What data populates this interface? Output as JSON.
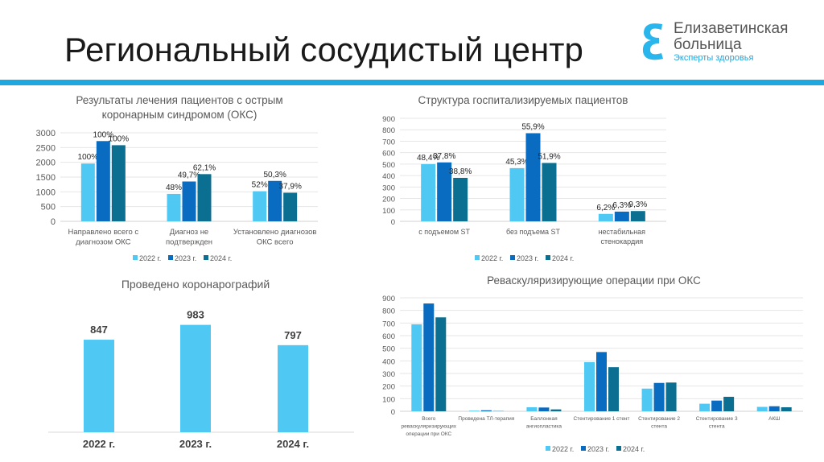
{
  "header": {
    "title": "Региональный сосудистый центр",
    "logo": {
      "line1": "Елизаветинская",
      "line2": "больница",
      "tagline": "Эксперты здоровья"
    },
    "accent": "#1ea7e1"
  },
  "colors": {
    "2022 г.": "#4fc8f4",
    "2023 г.": "#0a6cc0",
    "2024 г.": "#0b6f92"
  },
  "chart_data": [
    {
      "type": "bar",
      "title": "Результаты лечения пациентов с острым коронарным синдромом (ОКС)",
      "title_lines": [
        "Результаты лечения пациентов с острым",
        "коронарным синдромом (ОКС)"
      ],
      "categories": [
        "Направлено всего с диагнозом ОКС",
        "Диагноз не подтвержден",
        "Установлено диагнозов ОКС всего"
      ],
      "category_lines": [
        [
          "Направлено всего с",
          "диагнозом ОКС"
        ],
        [
          "Диагноз не",
          "подтвержден"
        ],
        [
          "Установлено диагнозов",
          "ОКС всего"
        ]
      ],
      "series": [
        {
          "name": "2022 г.",
          "values": [
            1960,
            930,
            1020
          ],
          "labels": [
            "100%",
            "48%",
            "52%"
          ]
        },
        {
          "name": "2023 г.",
          "values": [
            2720,
            1350,
            1370
          ],
          "labels": [
            "100%",
            "49,7%",
            "50,3%"
          ]
        },
        {
          "name": "2024 г.",
          "values": [
            2580,
            1600,
            970
          ],
          "labels": [
            "100%",
            "62,1%",
            "37,9%"
          ]
        }
      ],
      "ylim": [
        0,
        3000
      ],
      "yticks": [
        "0",
        "500",
        "1000",
        "1500",
        "2000",
        "2500",
        "3000"
      ],
      "grid": true,
      "legend": "bottom"
    },
    {
      "type": "bar",
      "title": "Структура госпитализируемых пациентов",
      "title_lines": [
        "Структура госпитализируемых пациентов"
      ],
      "categories": [
        "с подъемом ST",
        "без подъема ST",
        "нестабильная стенокардия"
      ],
      "category_lines": [
        [
          "с подъемом ST"
        ],
        [
          "без подъема ST"
        ],
        [
          "нестабильная",
          "стенокардия"
        ]
      ],
      "series": [
        {
          "name": "2022 г.",
          "values": [
            500,
            465,
            65
          ],
          "labels": [
            "48,4%",
            "45,3%",
            "6,2%"
          ]
        },
        {
          "name": "2023 г.",
          "values": [
            515,
            770,
            85
          ],
          "labels": [
            "37,8%",
            "55,9%",
            "6,3%"
          ]
        },
        {
          "name": "2024 г.",
          "values": [
            380,
            510,
            90
          ],
          "labels": [
            "38,8%",
            "51,9%",
            "9,3%"
          ]
        }
      ],
      "ylim": [
        0,
        900
      ],
      "yticks": [
        "0",
        "100",
        "200",
        "300",
        "400",
        "500",
        "600",
        "700",
        "800",
        "900"
      ],
      "grid": true,
      "legend": "bottom"
    },
    {
      "type": "bar",
      "title": "Проведено коронарографий",
      "title_lines": [
        "Проведено коронарографий"
      ],
      "categories": [
        "2022 г.",
        "2023 г.",
        "2024 г."
      ],
      "values": [
        847,
        983,
        797
      ],
      "labels": [
        "847",
        "983",
        "797"
      ],
      "grid": false,
      "legend": "none"
    },
    {
      "type": "bar",
      "title": "Реваскуляризирующие операции при ОКС",
      "title_lines": [
        "Реваскуляризирующие операции при ОКС"
      ],
      "categories": [
        "Всего реваскуляризирующих операции при ОКС",
        "Проведена ТЛ-терапия",
        "Баллонная ангиопластика",
        "Стентирование 1 стент",
        "Стентирование 2 стента",
        "Стентирование 3 стента",
        "АКШ"
      ],
      "category_lines": [
        [
          "Всего",
          "реваскуляризирующих",
          "операции при ОКС"
        ],
        [
          "Проведена ТЛ-терапия"
        ],
        [
          "Баллонная",
          "ангиопластика"
        ],
        [
          "Стентирование 1 стент"
        ],
        [
          "Стентирование 2",
          "стента"
        ],
        [
          "Стентирование 3",
          "стента"
        ],
        [
          "АКШ"
        ]
      ],
      "series": [
        {
          "name": "2022 г.",
          "values": [
            690,
            5,
            32,
            390,
            180,
            60,
            35
          ]
        },
        {
          "name": "2023 г.",
          "values": [
            855,
            8,
            30,
            470,
            225,
            85,
            40
          ]
        },
        {
          "name": "2024 г.",
          "values": [
            745,
            2,
            15,
            350,
            228,
            115,
            32
          ]
        }
      ],
      "ylim": [
        0,
        900
      ],
      "yticks": [
        "0",
        "100",
        "200",
        "300",
        "400",
        "500",
        "600",
        "700",
        "800",
        "900"
      ],
      "grid": true,
      "legend": "bottom"
    }
  ]
}
